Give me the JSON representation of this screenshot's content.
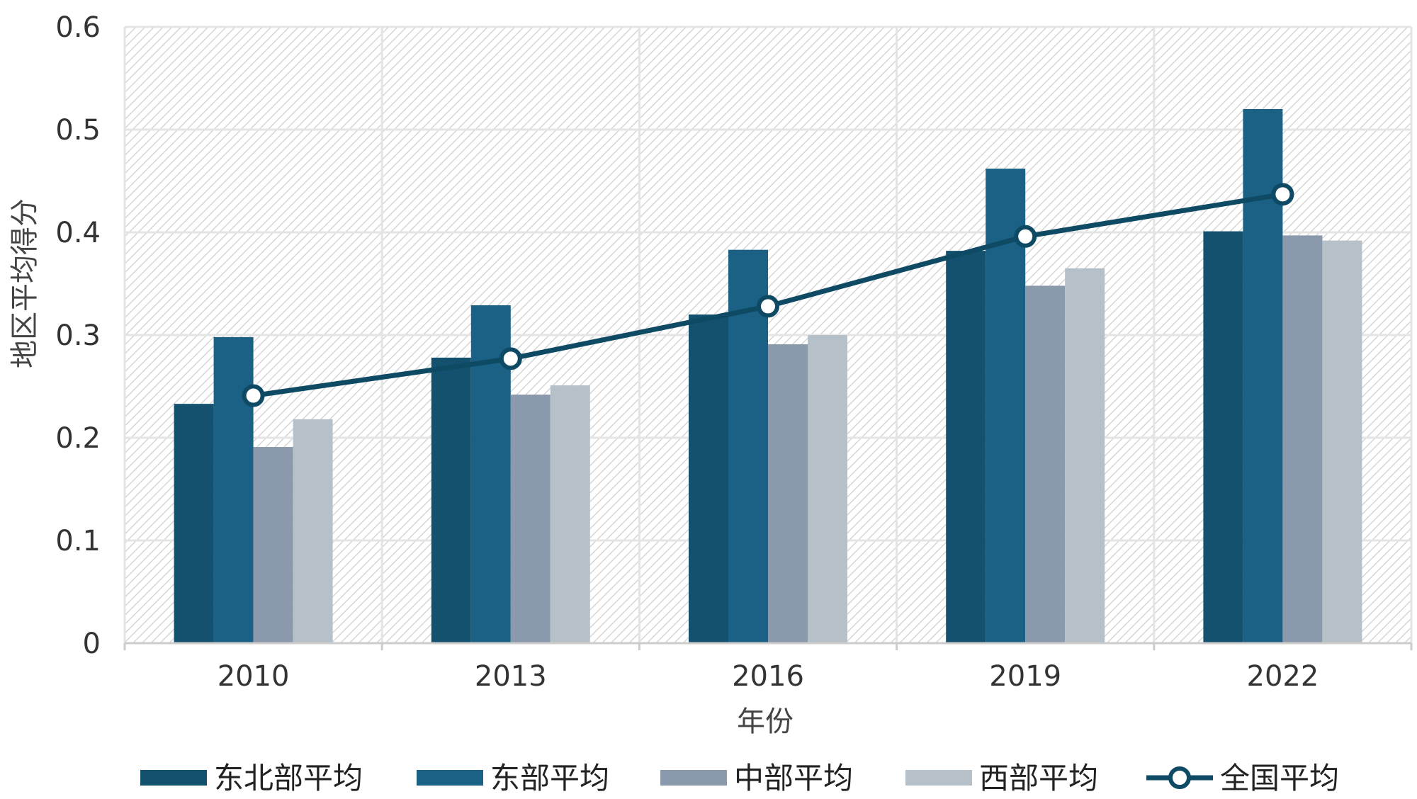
{
  "chart_data": {
    "type": "bar",
    "title": "",
    "xlabel": "年份",
    "ylabel": "地区平均得分",
    "categories": [
      "2010",
      "2013",
      "2016",
      "2019",
      "2022"
    ],
    "ylim": [
      0,
      0.6
    ],
    "yticks": [
      "0",
      "0.1",
      "0.2",
      "0.3",
      "0.4",
      "0.5",
      "0.6"
    ],
    "series": [
      {
        "name": "东北部平均",
        "kind": "bar",
        "color": "#14516e",
        "values": [
          0.233,
          0.278,
          0.32,
          0.382,
          0.401
        ]
      },
      {
        "name": "东部平均",
        "kind": "bar",
        "color": "#1a6185",
        "values": [
          0.298,
          0.329,
          0.383,
          0.462,
          0.52
        ]
      },
      {
        "name": "中部平均",
        "kind": "bar",
        "color": "#8a99ab",
        "values": [
          0.191,
          0.242,
          0.291,
          0.348,
          0.397
        ]
      },
      {
        "name": "西部平均",
        "kind": "bar",
        "color": "#b6c0c8",
        "values": [
          0.218,
          0.251,
          0.3,
          0.365,
          0.392
        ]
      },
      {
        "name": "全国平均",
        "kind": "line",
        "color": "#0f4a64",
        "values": [
          0.241,
          0.277,
          0.328,
          0.396,
          0.437
        ]
      }
    ],
    "grid": true,
    "legend_position": "bottom"
  }
}
